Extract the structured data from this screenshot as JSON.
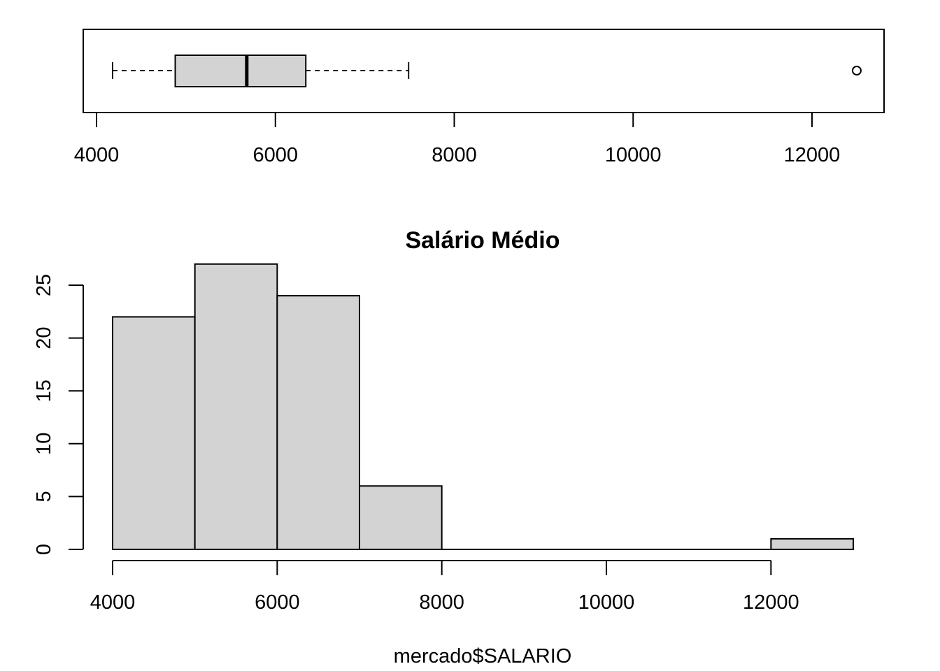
{
  "chart_data": [
    {
      "type": "boxplot",
      "orientation": "horizontal",
      "xlim": [
        4000,
        12800
      ],
      "ticks": [
        4000,
        6000,
        8000,
        10000,
        12000
      ],
      "tick_labels": [
        "4000",
        "6000",
        "8000",
        "10000",
        "12000"
      ],
      "whisker_low": 4180,
      "q1": 4880,
      "median": 5680,
      "q3": 6340,
      "whisker_high": 7490,
      "outliers": [
        12500
      ],
      "box_color": "#d3d3d3"
    },
    {
      "type": "bar",
      "subtype": "histogram",
      "title": "Salário Médio",
      "xlabel": "mercado$SALARIO",
      "ylabel": "",
      "bins": [
        [
          4000,
          5000
        ],
        [
          5000,
          6000
        ],
        [
          6000,
          7000
        ],
        [
          7000,
          8000
        ],
        [
          8000,
          9000
        ],
        [
          9000,
          10000
        ],
        [
          10000,
          11000
        ],
        [
          11000,
          12000
        ],
        [
          12000,
          13000
        ]
      ],
      "values": [
        22,
        27,
        24,
        6,
        0,
        0,
        0,
        0,
        1
      ],
      "xlim": [
        4000,
        13000
      ],
      "ylim": [
        0,
        27
      ],
      "x_ticks": [
        4000,
        6000,
        8000,
        10000,
        12000
      ],
      "x_tick_labels": [
        "4000",
        "6000",
        "8000",
        "10000",
        "12000"
      ],
      "y_ticks": [
        0,
        5,
        10,
        15,
        20,
        25
      ],
      "y_tick_labels": [
        "0",
        "5",
        "10",
        "15",
        "20",
        "25"
      ],
      "bar_color": "#d3d3d3"
    }
  ]
}
